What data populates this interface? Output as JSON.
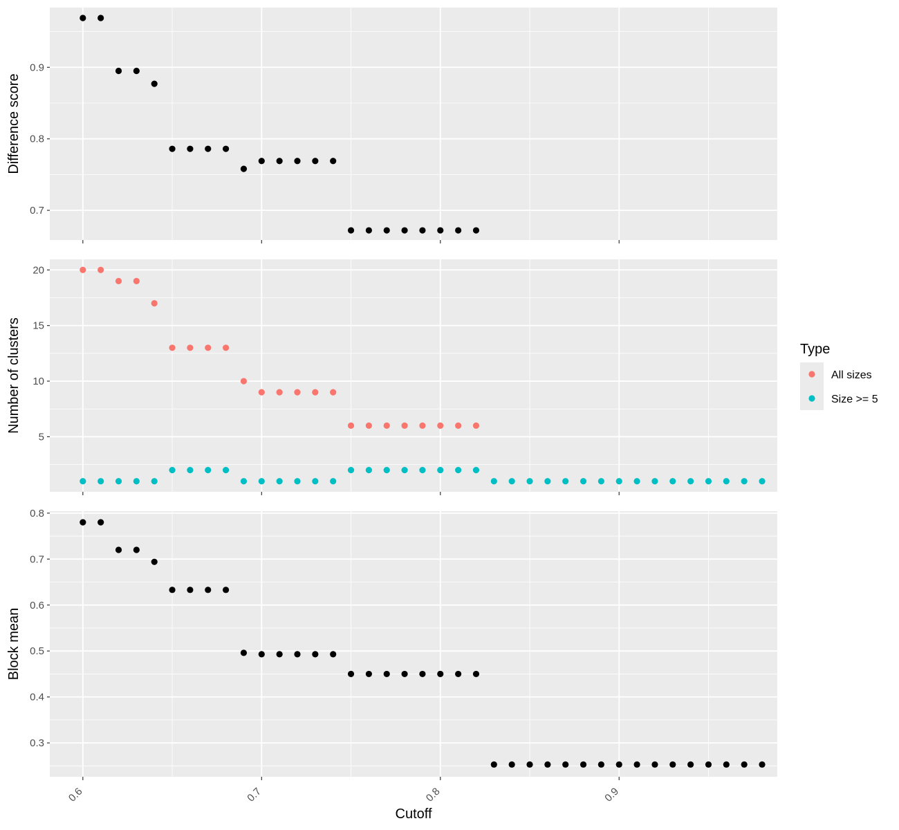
{
  "chart_data": {
    "type": "scatter",
    "xlabel": "Cutoff",
    "x_ticks": [
      "0.6",
      "0.7",
      "0.8",
      "0.9"
    ],
    "x_tick_values": [
      0.6,
      0.7,
      0.8,
      0.9
    ],
    "xlim": [
      0.5815,
      0.9885
    ],
    "grid": true,
    "legend": {
      "title": "Type",
      "position": "right",
      "entries": [
        {
          "label": "All sizes",
          "color": "#F8766D"
        },
        {
          "label": "Size >= 5",
          "color": "#00BFC4"
        }
      ]
    },
    "panels": [
      {
        "ylabel": "Difference score",
        "y_ticks": [
          "0.7",
          "0.8",
          "0.9"
        ],
        "y_tick_values": [
          0.7,
          0.8,
          0.9
        ],
        "ylim": [
          0.6585,
          0.9835
        ],
        "series": [
          {
            "color": "#000000",
            "x": [
              0.6,
              0.61,
              0.62,
              0.63,
              0.64,
              0.65,
              0.66,
              0.67,
              0.68,
              0.69,
              0.7,
              0.71,
              0.72,
              0.73,
              0.74,
              0.75,
              0.76,
              0.77,
              0.78,
              0.79,
              0.8,
              0.81,
              0.82
            ],
            "y": [
              0.969,
              0.969,
              0.895,
              0.895,
              0.877,
              0.786,
              0.786,
              0.786,
              0.786,
              0.758,
              0.769,
              0.769,
              0.769,
              0.769,
              0.769,
              0.672,
              0.672,
              0.672,
              0.672,
              0.672,
              0.672,
              0.672,
              0.672
            ]
          }
        ]
      },
      {
        "ylabel": "Number of clusters",
        "y_ticks": [
          "5",
          "10",
          "15",
          "20"
        ],
        "y_tick_values": [
          5,
          10,
          15,
          20
        ],
        "ylim": [
          0.05,
          20.95
        ],
        "series": [
          {
            "name": "All sizes",
            "color": "#F8766D",
            "x": [
              0.6,
              0.61,
              0.62,
              0.63,
              0.64,
              0.65,
              0.66,
              0.67,
              0.68,
              0.69,
              0.7,
              0.71,
              0.72,
              0.73,
              0.74,
              0.75,
              0.76,
              0.77,
              0.78,
              0.79,
              0.8,
              0.81,
              0.82
            ],
            "y": [
              20,
              20,
              19,
              19,
              17,
              13,
              13,
              13,
              13,
              10,
              9,
              9,
              9,
              9,
              9,
              6,
              6,
              6,
              6,
              6,
              6,
              6,
              6
            ]
          },
          {
            "name": "Size >= 5",
            "color": "#00BFC4",
            "x": [
              0.6,
              0.61,
              0.62,
              0.63,
              0.64,
              0.65,
              0.66,
              0.67,
              0.68,
              0.69,
              0.7,
              0.71,
              0.72,
              0.73,
              0.74,
              0.75,
              0.76,
              0.77,
              0.78,
              0.79,
              0.8,
              0.81,
              0.82,
              0.83,
              0.84,
              0.85,
              0.86,
              0.87,
              0.88,
              0.89,
              0.9,
              0.91,
              0.92,
              0.93,
              0.94,
              0.95,
              0.96,
              0.97,
              0.98
            ],
            "y": [
              1,
              1,
              1,
              1,
              1,
              2,
              2,
              2,
              2,
              1,
              1,
              1,
              1,
              1,
              1,
              2,
              2,
              2,
              2,
              2,
              2,
              2,
              2,
              1,
              1,
              1,
              1,
              1,
              1,
              1,
              1,
              1,
              1,
              1,
              1,
              1,
              1,
              1,
              1
            ]
          }
        ]
      },
      {
        "ylabel": "Block mean",
        "y_ticks": [
          "0.3",
          "0.4",
          "0.5",
          "0.6",
          "0.7",
          "0.8"
        ],
        "y_tick_values": [
          0.3,
          0.4,
          0.5,
          0.6,
          0.7,
          0.8
        ],
        "ylim": [
          0.2264,
          0.8043
        ],
        "series": [
          {
            "color": "#000000",
            "x": [
              0.6,
              0.61,
              0.62,
              0.63,
              0.64,
              0.65,
              0.66,
              0.67,
              0.68,
              0.69,
              0.7,
              0.71,
              0.72,
              0.73,
              0.74,
              0.75,
              0.76,
              0.77,
              0.78,
              0.79,
              0.8,
              0.81,
              0.82,
              0.83,
              0.84,
              0.85,
              0.86,
              0.87,
              0.88,
              0.89,
              0.9,
              0.91,
              0.92,
              0.93,
              0.94,
              0.95,
              0.96,
              0.97,
              0.98
            ],
            "y": [
              0.78,
              0.78,
              0.72,
              0.72,
              0.694,
              0.633,
              0.633,
              0.633,
              0.633,
              0.496,
              0.493,
              0.493,
              0.493,
              0.493,
              0.493,
              0.45,
              0.45,
              0.45,
              0.45,
              0.45,
              0.45,
              0.45,
              0.45,
              0.253,
              0.253,
              0.253,
              0.253,
              0.253,
              0.253,
              0.253,
              0.253,
              0.253,
              0.253,
              0.253,
              0.253,
              0.253,
              0.253,
              0.253,
              0.253
            ]
          }
        ]
      }
    ]
  }
}
